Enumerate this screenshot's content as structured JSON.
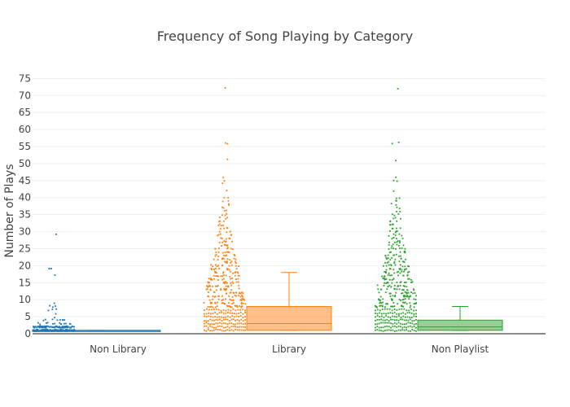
{
  "chart_data": {
    "type": "box",
    "title": "Frequency of Song Playing by Category",
    "xlabel": "",
    "ylabel": "Number of Plays",
    "ylim": [
      0,
      77
    ],
    "yticks": [
      0,
      5,
      10,
      15,
      20,
      25,
      30,
      35,
      40,
      45,
      50,
      55,
      60,
      65,
      70,
      75
    ],
    "grid": true,
    "legend": "none",
    "categories": [
      "Non Library",
      "Library",
      "Non Playlist"
    ],
    "series": [
      {
        "category": "Non Library",
        "color": "#1f77b4",
        "fill": "rgba(31,119,180,0.5)",
        "box": {
          "lowerfence": 1,
          "q1": 1,
          "median": 1,
          "q3": 1,
          "upperfence": 1
        },
        "points": {
          "dense_counts": {
            "1": 60,
            "2": 40
          },
          "sparse": [
            [
              3,
              14
            ],
            [
              4,
              8
            ],
            [
              5,
              1
            ],
            [
              6,
              1
            ],
            [
              7,
              3
            ],
            [
              8,
              3
            ],
            [
              9,
              1
            ],
            [
              17,
              1
            ],
            [
              19,
              3
            ],
            [
              29,
              1
            ]
          ]
        }
      },
      {
        "category": "Library",
        "color": "#ff7f0e",
        "fill": "rgba(255,127,14,0.5)",
        "box": {
          "lowerfence": 1,
          "q1": 1,
          "median": 3,
          "q3": 8,
          "upperfence": 18
        },
        "points": {
          "dense_counts": {
            "1": 22,
            "2": 22,
            "3": 22,
            "4": 22,
            "5": 20,
            "6": 20,
            "7": 18
          },
          "sparse": [
            [
              8,
              20
            ],
            [
              9,
              18
            ],
            [
              10,
              17
            ],
            [
              11,
              17
            ],
            [
              12,
              16
            ],
            [
              13,
              15
            ],
            [
              14,
              15
            ],
            [
              15,
              14
            ],
            [
              16,
              13
            ],
            [
              17,
              12
            ],
            [
              18,
              12
            ],
            [
              19,
              11
            ],
            [
              20,
              11
            ],
            [
              21,
              9
            ],
            [
              22,
              9
            ],
            [
              23,
              8
            ],
            [
              24,
              7
            ],
            [
              25,
              7
            ],
            [
              26,
              6
            ],
            [
              27,
              6
            ],
            [
              28,
              5
            ],
            [
              29,
              5
            ],
            [
              30,
              4
            ],
            [
              31,
              4
            ],
            [
              32,
              4
            ],
            [
              33,
              3
            ],
            [
              34,
              3
            ],
            [
              35,
              3
            ],
            [
              36,
              2
            ],
            [
              37,
              2
            ],
            [
              38,
              2
            ],
            [
              39,
              2
            ],
            [
              40,
              2
            ],
            [
              42,
              1
            ],
            [
              44,
              1
            ],
            [
              45,
              1
            ],
            [
              46,
              1
            ],
            [
              51,
              1
            ],
            [
              56,
              2
            ],
            [
              72,
              1
            ]
          ]
        }
      },
      {
        "category": "Non Playlist",
        "color": "#2ca02c",
        "fill": "rgba(44,160,44,0.5)",
        "box": {
          "lowerfence": 1,
          "q1": 1,
          "median": 2,
          "q3": 4,
          "upperfence": 8
        },
        "points": {
          "dense_counts": {
            "1": 22,
            "2": 22,
            "3": 22,
            "4": 22,
            "5": 20,
            "6": 20,
            "7": 18
          },
          "sparse": [
            [
              8,
              20
            ],
            [
              9,
              18
            ],
            [
              10,
              17
            ],
            [
              11,
              17
            ],
            [
              12,
              16
            ],
            [
              13,
              15
            ],
            [
              14,
              15
            ],
            [
              15,
              14
            ],
            [
              16,
              13
            ],
            [
              17,
              12
            ],
            [
              18,
              12
            ],
            [
              19,
              11
            ],
            [
              20,
              11
            ],
            [
              21,
              9
            ],
            [
              22,
              9
            ],
            [
              23,
              8
            ],
            [
              24,
              7
            ],
            [
              25,
              7
            ],
            [
              26,
              6
            ],
            [
              27,
              6
            ],
            [
              28,
              5
            ],
            [
              29,
              5
            ],
            [
              30,
              4
            ],
            [
              31,
              4
            ],
            [
              32,
              4
            ],
            [
              33,
              3
            ],
            [
              34,
              3
            ],
            [
              35,
              3
            ],
            [
              36,
              2
            ],
            [
              37,
              2
            ],
            [
              38,
              2
            ],
            [
              39,
              2
            ],
            [
              40,
              2
            ],
            [
              42,
              1
            ],
            [
              45,
              2
            ],
            [
              46,
              1
            ],
            [
              51,
              1
            ],
            [
              56,
              2
            ],
            [
              72,
              1
            ]
          ]
        }
      }
    ]
  }
}
